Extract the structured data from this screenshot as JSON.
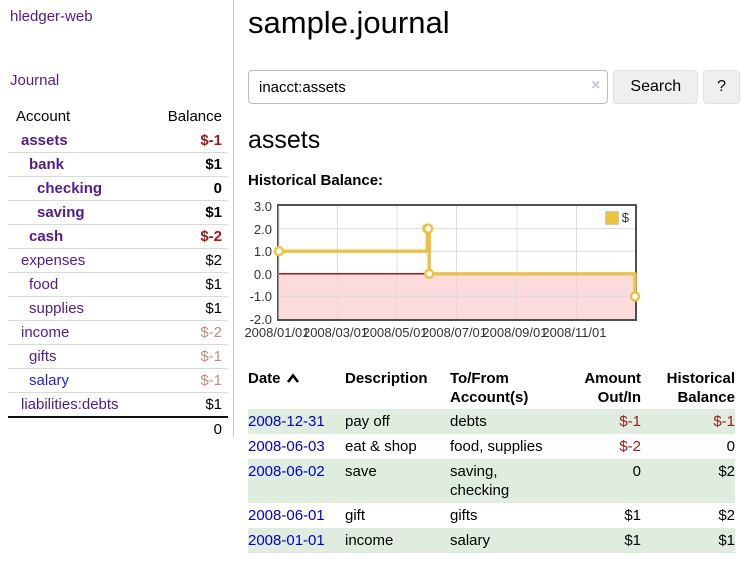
{
  "colors": {
    "purple": "#551A8B",
    "blue": "#2323CC",
    "datelink": "#0000CC",
    "negstrong": "#A01818",
    "negfaded": "#C28A8A",
    "gold": "#EDC240",
    "pink": "#FBDBDB",
    "zeroline": "#A00000",
    "chartborder": "#4F4F4F",
    "grid": "#DCDCDC",
    "green": "#DEEDDE",
    "btn": "#EFEFEF"
  },
  "sidebar": {
    "app_title": "hledger-web",
    "journal_link": "Journal",
    "accounts": {
      "headers": {
        "account": "Account",
        "balance": "Balance"
      },
      "rows": [
        {
          "name": "assets",
          "balance": "$-1",
          "indent": 0,
          "emph": true,
          "neg": "strong"
        },
        {
          "name": "bank",
          "balance": "$1",
          "indent": 1,
          "emph": true
        },
        {
          "name": "checking",
          "balance": "0",
          "indent": 2,
          "emph": true
        },
        {
          "name": "saving",
          "balance": "$1",
          "indent": 2,
          "emph": true
        },
        {
          "name": "cash",
          "balance": "$-2",
          "indent": 1,
          "emph": true,
          "neg": "strong"
        },
        {
          "name": "expenses",
          "balance": "$2",
          "indent": 0
        },
        {
          "name": "food",
          "balance": "$1",
          "indent": 1
        },
        {
          "name": "supplies",
          "balance": "$1",
          "indent": 1
        },
        {
          "name": "income",
          "balance": "$-2",
          "indent": 0,
          "neg": "faded"
        },
        {
          "name": "gifts",
          "balance": "$-1",
          "indent": 1,
          "neg": "faded"
        },
        {
          "name": "salary",
          "balance": "$-1",
          "indent": 1,
          "neg": "faded",
          "link_style": "unvisited"
        },
        {
          "name": "liabilities:debts",
          "balance": "$1",
          "indent": 0
        }
      ],
      "total": "0"
    }
  },
  "main": {
    "title": "sample.journal",
    "search": {
      "value": "inacct:assets",
      "clear_icon": "×",
      "button_label": "Search",
      "help_label": "?"
    },
    "account_heading": "assets",
    "chart_label": "Historical Balance:"
  },
  "chart_data": {
    "type": "line",
    "title": "Historical Balance",
    "step": true,
    "series": [
      {
        "name": "$",
        "points": [
          {
            "date": "2008-01-01",
            "value": 1
          },
          {
            "date": "2008-06-01",
            "value": 2
          },
          {
            "date": "2008-06-02",
            "value": 2
          },
          {
            "date": "2008-06-03",
            "value": 0
          },
          {
            "date": "2008-12-31",
            "value": -1
          }
        ]
      }
    ],
    "x_ticks": [
      "2008/01/01",
      "2008/03/01",
      "2008/05/01",
      "2008/07/01",
      "2008/09/01",
      "2008/11/01"
    ],
    "y_ticks": [
      3.0,
      2.0,
      1.0,
      0.0,
      -1.0,
      -2.0
    ],
    "ylim": [
      -2,
      3
    ],
    "grid": true,
    "legend": {
      "label": "$",
      "position": "top-right"
    },
    "negative_region_below": 0
  },
  "register": {
    "headers": [
      [
        "Date"
      ],
      [
        "Description"
      ],
      [
        "To/From",
        "Account(s)"
      ],
      [
        "Amount",
        "Out/In"
      ],
      [
        "Historical",
        "Balance"
      ]
    ],
    "sort_icon": "chevron-up",
    "rows": [
      {
        "date": "2008-12-31",
        "description": "pay off",
        "accounts": "debts",
        "amount": "$-1",
        "amount_neg": true,
        "balance": "$-1",
        "balance_neg": true
      },
      {
        "date": "2008-06-03",
        "description": "eat & shop",
        "accounts": "food, supplies",
        "amount": "$-2",
        "amount_neg": true,
        "balance": "0",
        "balance_neg": false
      },
      {
        "date": "2008-06-02",
        "description": "save",
        "accounts": "saving, checking",
        "amount": "0",
        "amount_neg": false,
        "balance": "$2",
        "balance_neg": false
      },
      {
        "date": "2008-06-01",
        "description": "gift",
        "accounts": "gifts",
        "amount": "$1",
        "amount_neg": false,
        "balance": "$2",
        "balance_neg": false
      },
      {
        "date": "2008-01-01",
        "description": "income",
        "accounts": "salary",
        "amount": "$1",
        "amount_neg": false,
        "balance": "$1",
        "balance_neg": false
      }
    ]
  }
}
